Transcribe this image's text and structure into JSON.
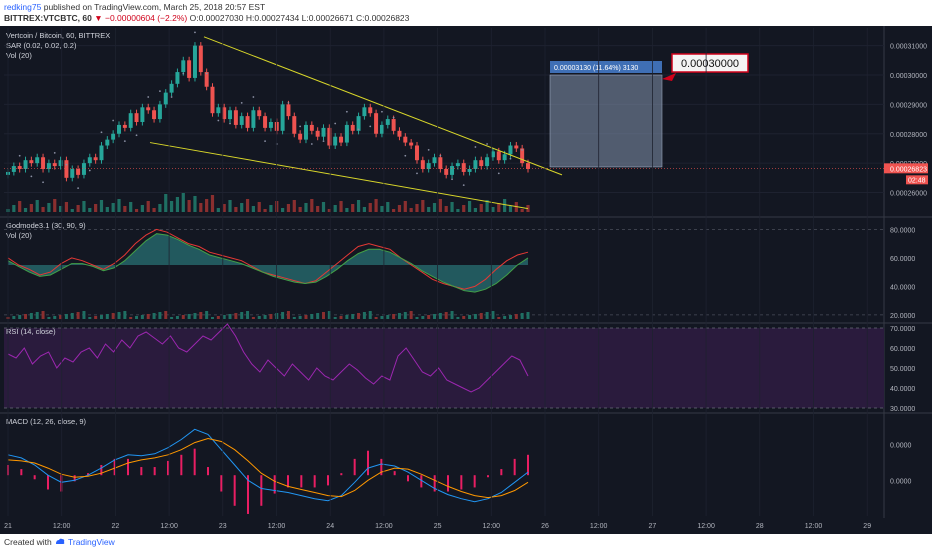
{
  "header": {
    "line1_user": "redking75",
    "line1_text": "published on TradingView.com, March 25, 2018 20:57 EST",
    "symbol": "BITTREX:VTCBTC, 60",
    "change": "▼ −0.00000604 (−2.2%)",
    "ohlc": "O:0.00027030 H:0.00027434 L:0.00026671 C:0.00026823"
  },
  "footer": {
    "created_with": "Created with",
    "brand": "TradingView"
  },
  "colors": {
    "background": "#131722",
    "up": "#26a69a",
    "down": "#ef5350",
    "trend": "#d8d62a",
    "rsi": "#9c27b0",
    "rsi_band": "#2a1b3d",
    "macd": "#2196f3",
    "signal": "#ff9800",
    "box": "#7b8aa3",
    "vol_up": "#1f6f63",
    "vol_down": "#8a2f2f"
  },
  "chart_data": [
    {
      "type": "candlestick",
      "title": "Vertcoin / Bitcoin, 60, BITTREX",
      "indicators": [
        "SAR (0.02, 0.02, 0.2)",
        "Vol (20)"
      ],
      "ylim": [
        0.000252,
        0.000316
      ],
      "y_ticks": [
        "0.00031000",
        "0.00030000",
        "0.00029000",
        "0.00028000",
        "0.00027000",
        "0.00026000"
      ],
      "last_price": "0.00026823",
      "countdown": "02:48",
      "x_ticks": [
        "21",
        "12:00",
        "22",
        "12:00",
        "23",
        "12:00",
        "24",
        "12:00",
        "25",
        "12:00",
        "26",
        "12:00",
        "27",
        "12:00",
        "28",
        "12:00",
        "29"
      ],
      "closes": [
        0.000267,
        0.000269,
        0.000268,
        0.000271,
        0.00027,
        0.000272,
        0.000268,
        0.00027,
        0.000269,
        0.000271,
        0.000265,
        0.000268,
        0.000266,
        0.00027,
        0.000272,
        0.000271,
        0.000276,
        0.000278,
        0.00028,
        0.000283,
        0.000282,
        0.000287,
        0.000284,
        0.000289,
        0.000288,
        0.000285,
        0.00029,
        0.000294,
        0.000297,
        0.000301,
        0.000305,
        0.000299,
        0.00031,
        0.000301,
        0.000296,
        0.000287,
        0.000289,
        0.000285,
        0.000288,
        0.000283,
        0.000286,
        0.000282,
        0.000288,
        0.000286,
        0.000282,
        0.000284,
        0.000281,
        0.00029,
        0.000286,
        0.00028,
        0.000278,
        0.000283,
        0.000281,
        0.000279,
        0.000282,
        0.000276,
        0.000279,
        0.000277,
        0.000283,
        0.000281,
        0.000286,
        0.000289,
        0.000287,
        0.00028,
        0.000283,
        0.000285,
        0.000281,
        0.000279,
        0.000277,
        0.000276,
        0.000271,
        0.000268,
        0.00027,
        0.000272,
        0.000268,
        0.000266,
        0.000269,
        0.00027,
        0.000267,
        0.000268,
        0.000271,
        0.000269,
        0.000272,
        0.000274,
        0.000271,
        0.000273,
        0.000276,
        0.000275,
        0.00027,
        0.000268
      ],
      "annotation": {
        "label": "0.00003130 (11.64%) 3130",
        "target": "0.00030000",
        "from": 0.0002687,
        "to": 0.0003
      },
      "trendlines": [
        "falling wedge upper",
        "falling wedge lower"
      ]
    },
    {
      "type": "line",
      "title": "Godmode3.1 (30, 90, 9)",
      "sub_indicator": "Vol (20)",
      "ylim": [
        15,
        88
      ],
      "y_ticks": [
        "80.0000",
        "60.0000",
        "40.0000",
        "20.0000"
      ],
      "series": [
        {
          "values": [
            60,
            55,
            52,
            48,
            50,
            56,
            60,
            58,
            55,
            52,
            56,
            62,
            70,
            76,
            80,
            78,
            74,
            70,
            68,
            64,
            62,
            60,
            58,
            54,
            50,
            48,
            46,
            44,
            42,
            44,
            50,
            56,
            62,
            68,
            70,
            68,
            66,
            60,
            55,
            50,
            45,
            42,
            40,
            38,
            40,
            45,
            52,
            58,
            62,
            64
          ]
        },
        {
          "values": [
            58,
            54,
            50,
            47,
            48,
            52,
            56,
            56,
            54,
            51,
            53,
            58,
            65,
            72,
            77,
            76,
            73,
            69,
            66,
            62,
            60,
            58,
            56,
            53,
            50,
            47,
            45,
            43,
            42,
            43,
            47,
            52,
            58,
            63,
            66,
            66,
            64,
            60,
            56,
            51,
            47,
            43,
            40,
            37,
            36,
            38,
            42,
            48,
            55,
            60
          ]
        }
      ]
    },
    {
      "type": "line",
      "title": "RSI (14, close)",
      "ylim": [
        28,
        72
      ],
      "y_ticks": [
        "70.0000",
        "60.0000",
        "50.0000",
        "40.0000",
        "30.0000"
      ],
      "series": [
        {
          "values": [
            57,
            55,
            60,
            52,
            56,
            58,
            50,
            55,
            53,
            58,
            60,
            55,
            62,
            58,
            64,
            60,
            66,
            68,
            65,
            62,
            66,
            60,
            58,
            62,
            66,
            64,
            68,
            72,
            66,
            58,
            52,
            48,
            54,
            50,
            46,
            52,
            48,
            44,
            50,
            46,
            44,
            48,
            52,
            49,
            45,
            42,
            46,
            44,
            56,
            60,
            54,
            48,
            46,
            50,
            44,
            42,
            40,
            38,
            40,
            44,
            48,
            52,
            56,
            54,
            46
          ]
        }
      ]
    },
    {
      "type": "line",
      "title": "MACD (12, 26, close, 9)",
      "ylim": [
        -4.5e-06,
        5.5e-06
      ],
      "y_ticks": [
        "0.0000",
        "0.0000"
      ],
      "series": [
        {
          "values": [
            1.5e-06,
            1.2e-06,
            5e-07,
            -5e-07,
            -1.2e-06,
            -1e-06,
            -5e-07,
            2e-07,
            1e-06,
            1.5e-06,
            1.4e-06,
            1.6e-06,
            2.2e-06,
            3e-06,
            4e-06,
            3.5e-06,
            2e-06,
            5e-07,
            -1e-06,
            -1.8e-06,
            -2e-06,
            -2.2e-06,
            -2.5e-06,
            -2.8e-06,
            -3e-06,
            -2.5e-06,
            -1.2e-06,
            2e-07,
            6e-07,
            4e-07,
            -2e-07,
            -1e-06,
            -1.8e-06,
            -2.4e-06,
            -2.8e-06,
            -3.1e-06,
            -2.8e-06,
            -2.2e-06,
            -1.2e-06,
            -2e-07
          ]
        },
        {
          "values": [
            1e-06,
            9e-07,
            7e-07,
            2e-07,
            -4e-07,
            -7e-07,
            -6e-07,
            -3e-07,
            2e-07,
            7e-07,
            1e-06,
            1.2e-06,
            1.5e-06,
            2e-06,
            2.7e-06,
            3.1e-06,
            2.8e-06,
            2e-06,
            9e-07,
            -3e-07,
            -1.1e-06,
            -1.6e-06,
            -1.9e-06,
            -2.2e-06,
            -2.5e-06,
            -2.6e-06,
            -2e-06,
            -1e-06,
            -2e-07,
            2e-07,
            1e-07,
            -4e-07,
            -1e-06,
            -1.6e-06,
            -2.1e-06,
            -2.5e-06,
            -2.7e-06,
            -2.5e-06,
            -2e-06,
            -1.2e-06
          ]
        }
      ]
    }
  ]
}
